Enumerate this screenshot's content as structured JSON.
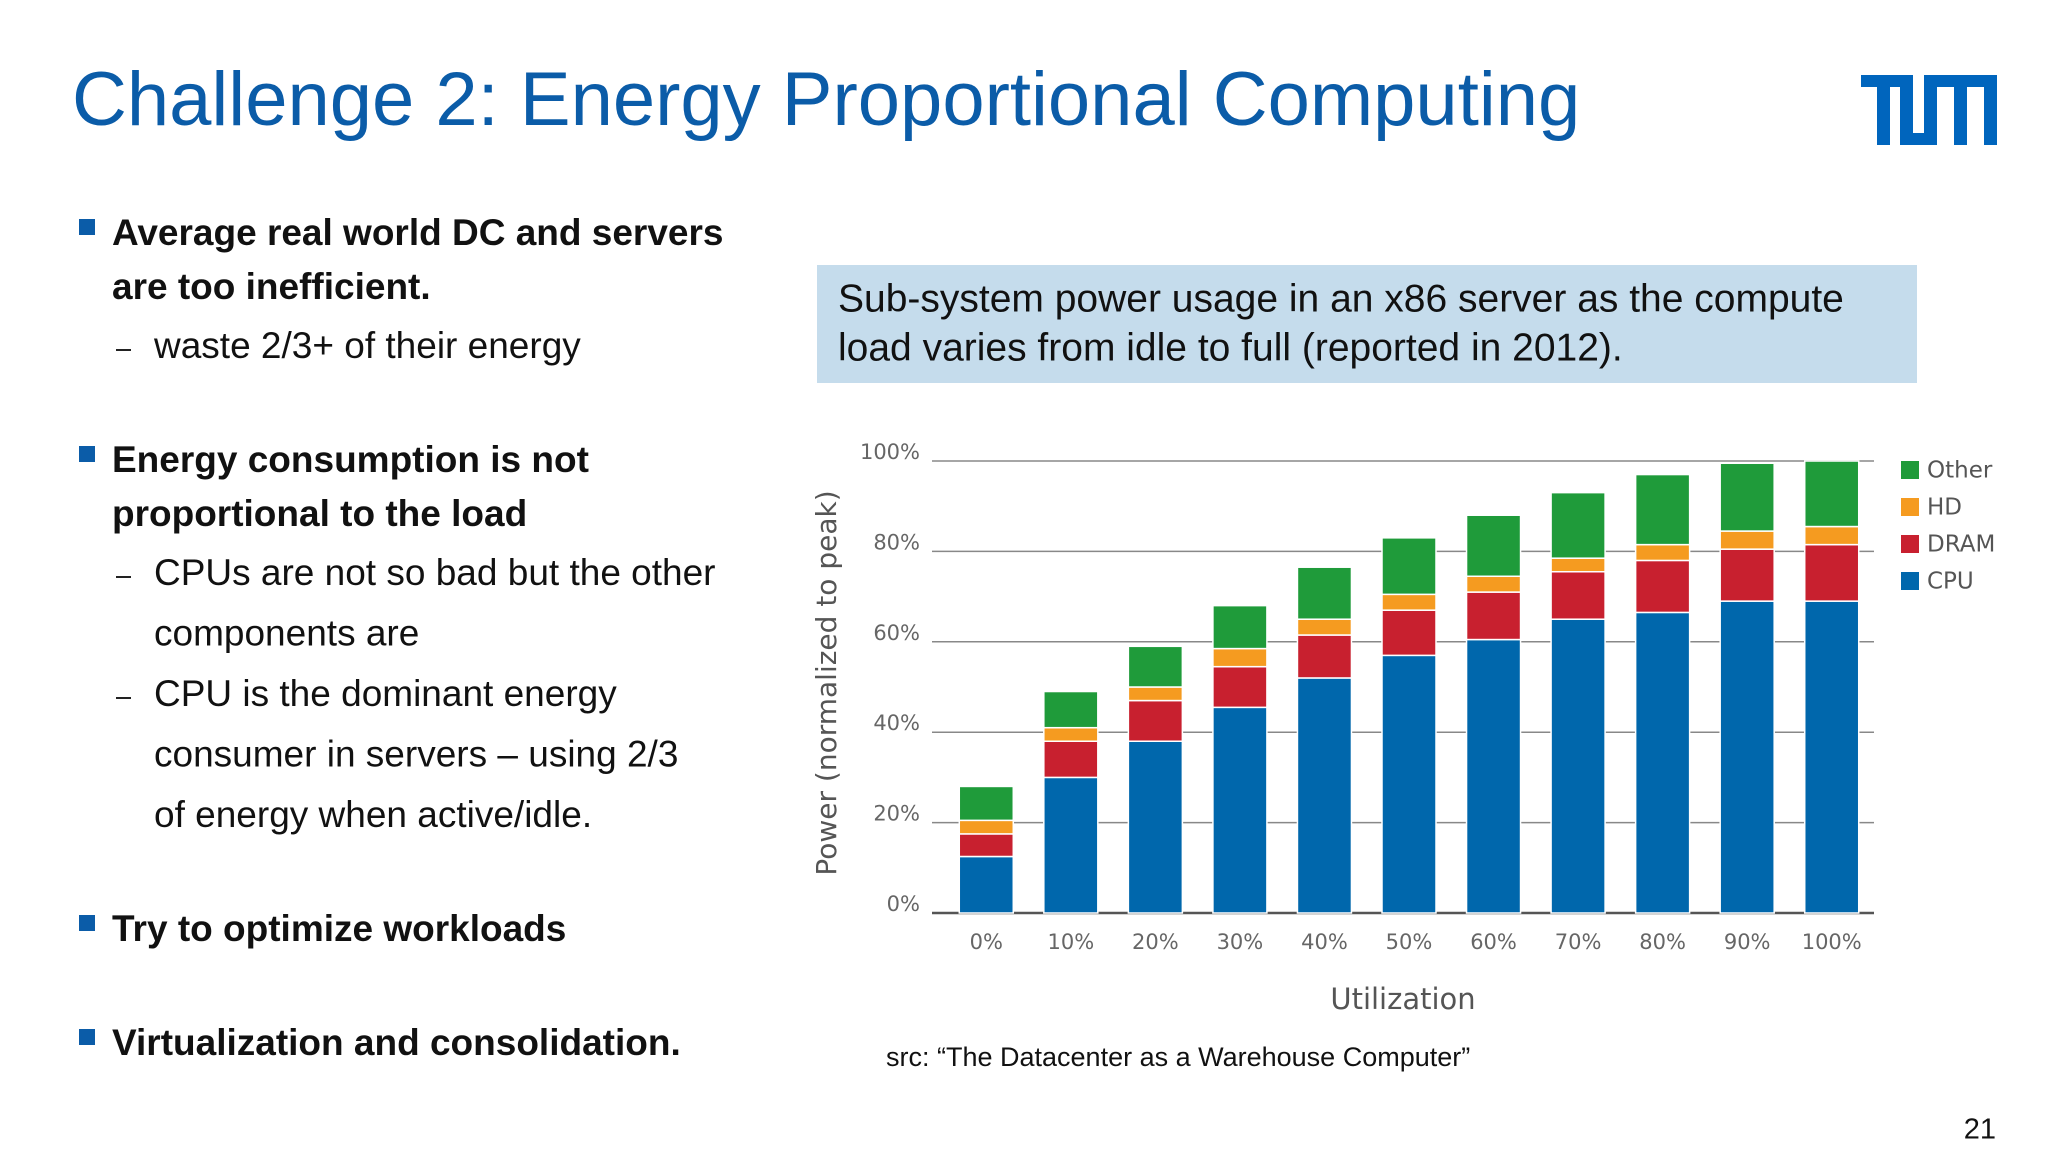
{
  "header": {
    "title": "Challenge 2: Energy Proportional Computing"
  },
  "bullets": [
    {
      "lines": [
        "Average real world DC and servers",
        "are too inefficient."
      ],
      "sub": [
        [
          "waste 2/3+ of their energy"
        ]
      ]
    },
    {
      "lines": [
        "Energy consumption is not",
        "proportional to the load"
      ],
      "sub": [
        [
          "CPUs are not so bad but the other",
          "components are"
        ],
        [
          "CPU is the dominant energy",
          "consumer in servers – using 2/3",
          "of energy when active/idle."
        ]
      ]
    },
    {
      "lines": [
        "Try to optimize workloads"
      ]
    },
    {
      "lines": [
        "Virtualization and consolidation."
      ]
    }
  ],
  "caption": {
    "lines": [
      "Sub-system power usage in an x86 server as the compute",
      "load varies from idle to full (reported in 2012)."
    ]
  },
  "source": "src: “The Datacenter as a Warehouse Computer”",
  "page_number": "21",
  "chart_data": {
    "type": "stacked_bar",
    "x_label": "Utilization",
    "y_label": "Power (normalized to peak)",
    "categories": [
      "0%",
      "10%",
      "20%",
      "30%",
      "40%",
      "50%",
      "60%",
      "70%",
      "80%",
      "90%",
      "100%"
    ],
    "series": [
      {
        "name": "CPU",
        "color": "#0067ac",
        "values": [
          12.5,
          30,
          38,
          45.5,
          52,
          57,
          60.5,
          65,
          66.5,
          69,
          69
        ]
      },
      {
        "name": "DRAM",
        "color": "#c8202f",
        "values": [
          5,
          8,
          9,
          9,
          9.5,
          10,
          10.5,
          10.5,
          11.5,
          11.5,
          12.5
        ]
      },
      {
        "name": "HD",
        "color": "#f59b20",
        "values": [
          3,
          3,
          3,
          4,
          3.5,
          3.5,
          3.5,
          3,
          3.5,
          4,
          4
        ]
      },
      {
        "name": "Other",
        "color": "#1f9b3a",
        "values": [
          7.5,
          8,
          9,
          9.5,
          11.5,
          12.5,
          13.5,
          14.5,
          15.5,
          15,
          14.5
        ]
      }
    ],
    "ylim": [
      0,
      100
    ],
    "yticks": [
      {
        "value": 0,
        "label": "0%"
      },
      {
        "value": 20,
        "label": "20%"
      },
      {
        "value": 40,
        "label": "40%"
      },
      {
        "value": 60,
        "label": "60%"
      },
      {
        "value": 80,
        "label": "80%"
      },
      {
        "value": 100,
        "label": "100%"
      }
    ],
    "grid": true,
    "legend": "right"
  }
}
